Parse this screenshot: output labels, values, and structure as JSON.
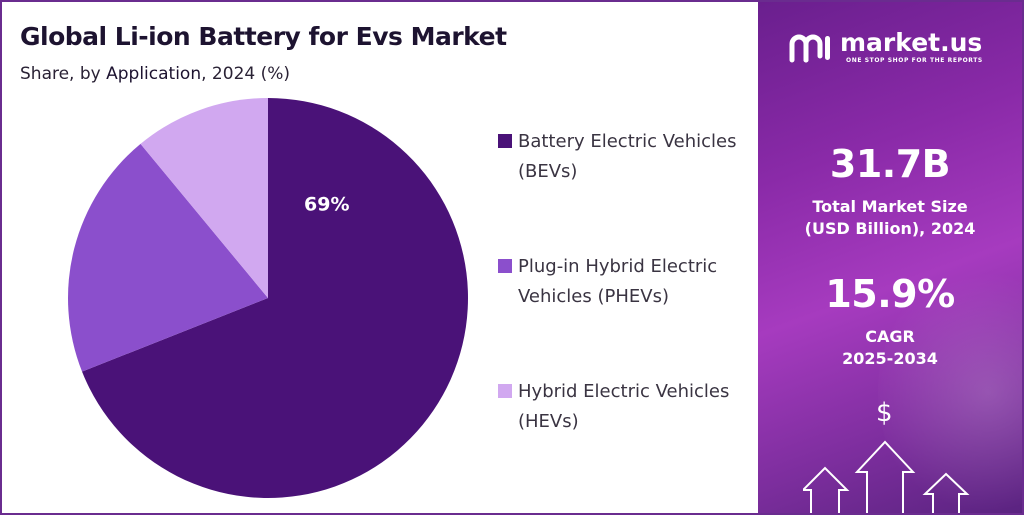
{
  "title": "Global Li-ion Battery for Evs Market",
  "subtitle": {
    "prefix": "Share, by ",
    "highlight": "Application",
    "suffix": ", 2024 (%)"
  },
  "chart_data": {
    "type": "pie",
    "slices": [
      {
        "label_line1": "Battery Electric Vehicles",
        "label_line2": "(BEVs)",
        "value": 69,
        "color": "#4a1278",
        "data_label": "69%"
      },
      {
        "label_line1": "Plug-in Hybrid Electric",
        "label_line2": "Vehicles (PHEVs)",
        "value": 20,
        "color": "#8b4fcc",
        "data_label": ""
      },
      {
        "label_line1": "Hybrid Electric Vehicles",
        "label_line2": "(HEVs)",
        "value": 11,
        "color": "#d1a8f0",
        "data_label": ""
      }
    ],
    "legend_position": "right"
  },
  "brand": {
    "name": "market.us",
    "tagline": "ONE STOP SHOP FOR THE REPORTS"
  },
  "stats": {
    "market_size_value": "31.7B",
    "market_size_label_line1": "Total Market Size",
    "market_size_label_line2": "(USD Billion), 2024",
    "cagr_value": "15.9%",
    "cagr_label_line1": "CAGR",
    "cagr_label_line2": "2025-2034"
  },
  "icons": {
    "dollar": "$",
    "logo": "market-us-logo-icon",
    "arrows": "growth-arrows-icon"
  },
  "colors": {
    "panel": "#8a2aa8",
    "border": "#6a2c8f"
  }
}
